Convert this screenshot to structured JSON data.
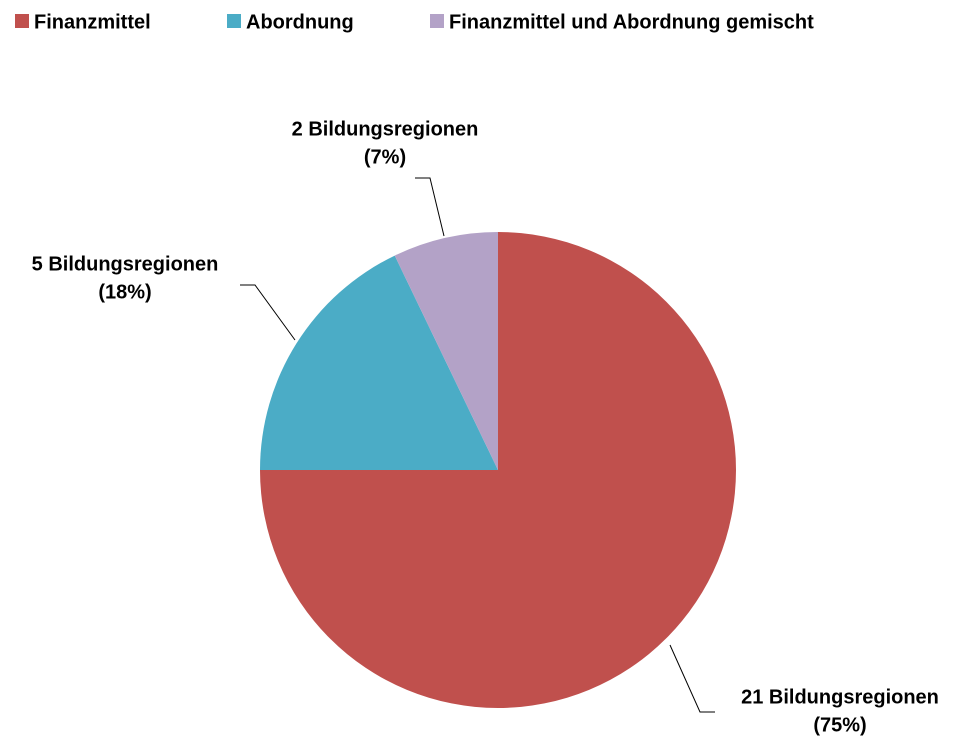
{
  "chart_data": {
    "type": "pie",
    "categories": [
      "Finanzmittel",
      "Abordnung",
      "Finanzmittel und Abordnung gemischt"
    ],
    "values": [
      21,
      5,
      2
    ],
    "value_labels": [
      "21 Bildungsregionen",
      "5 Bildungsregionen",
      "2 Bildungsregionen"
    ],
    "percentages": [
      75,
      18,
      7
    ],
    "percentage_labels": [
      "(75%)",
      "(18%)",
      "(7%)"
    ],
    "colors": [
      "#c0504d",
      "#4bacc6",
      "#b3a2c7"
    ],
    "legend": "top"
  }
}
